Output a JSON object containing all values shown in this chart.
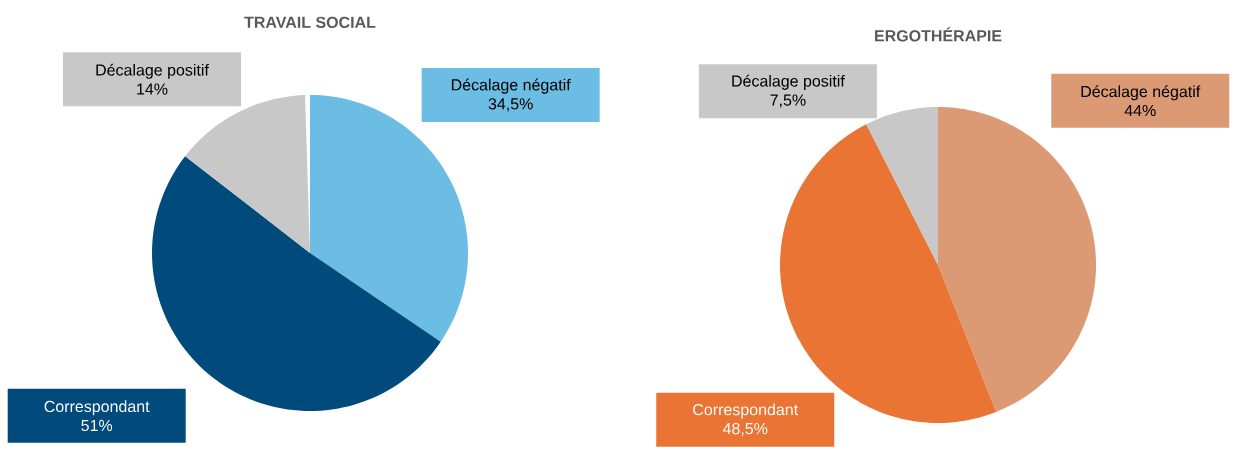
{
  "chart_data": [
    {
      "type": "pie",
      "title": "TRAVAIL SOCIAL",
      "categories": [
        "Décalage négatif",
        "Correspondant",
        "Décalage positif"
      ],
      "values": [
        34.5,
        51,
        14
      ],
      "value_labels": [
        "34,5%",
        "51%",
        "14%"
      ],
      "colors": [
        "#6cbde3",
        "#004a7c",
        "#c8c8c8"
      ]
    },
    {
      "type": "pie",
      "title": "ERGOTHÉRAPIE",
      "categories": [
        "Décalage négatif",
        "Correspondant",
        "Décalage positif"
      ],
      "values": [
        44,
        48.5,
        7.5
      ],
      "value_labels": [
        "44%",
        "48,5%",
        "7,5%"
      ],
      "colors": [
        "#dc9a74",
        "#ea7434",
        "#c8c8c8"
      ]
    }
  ]
}
